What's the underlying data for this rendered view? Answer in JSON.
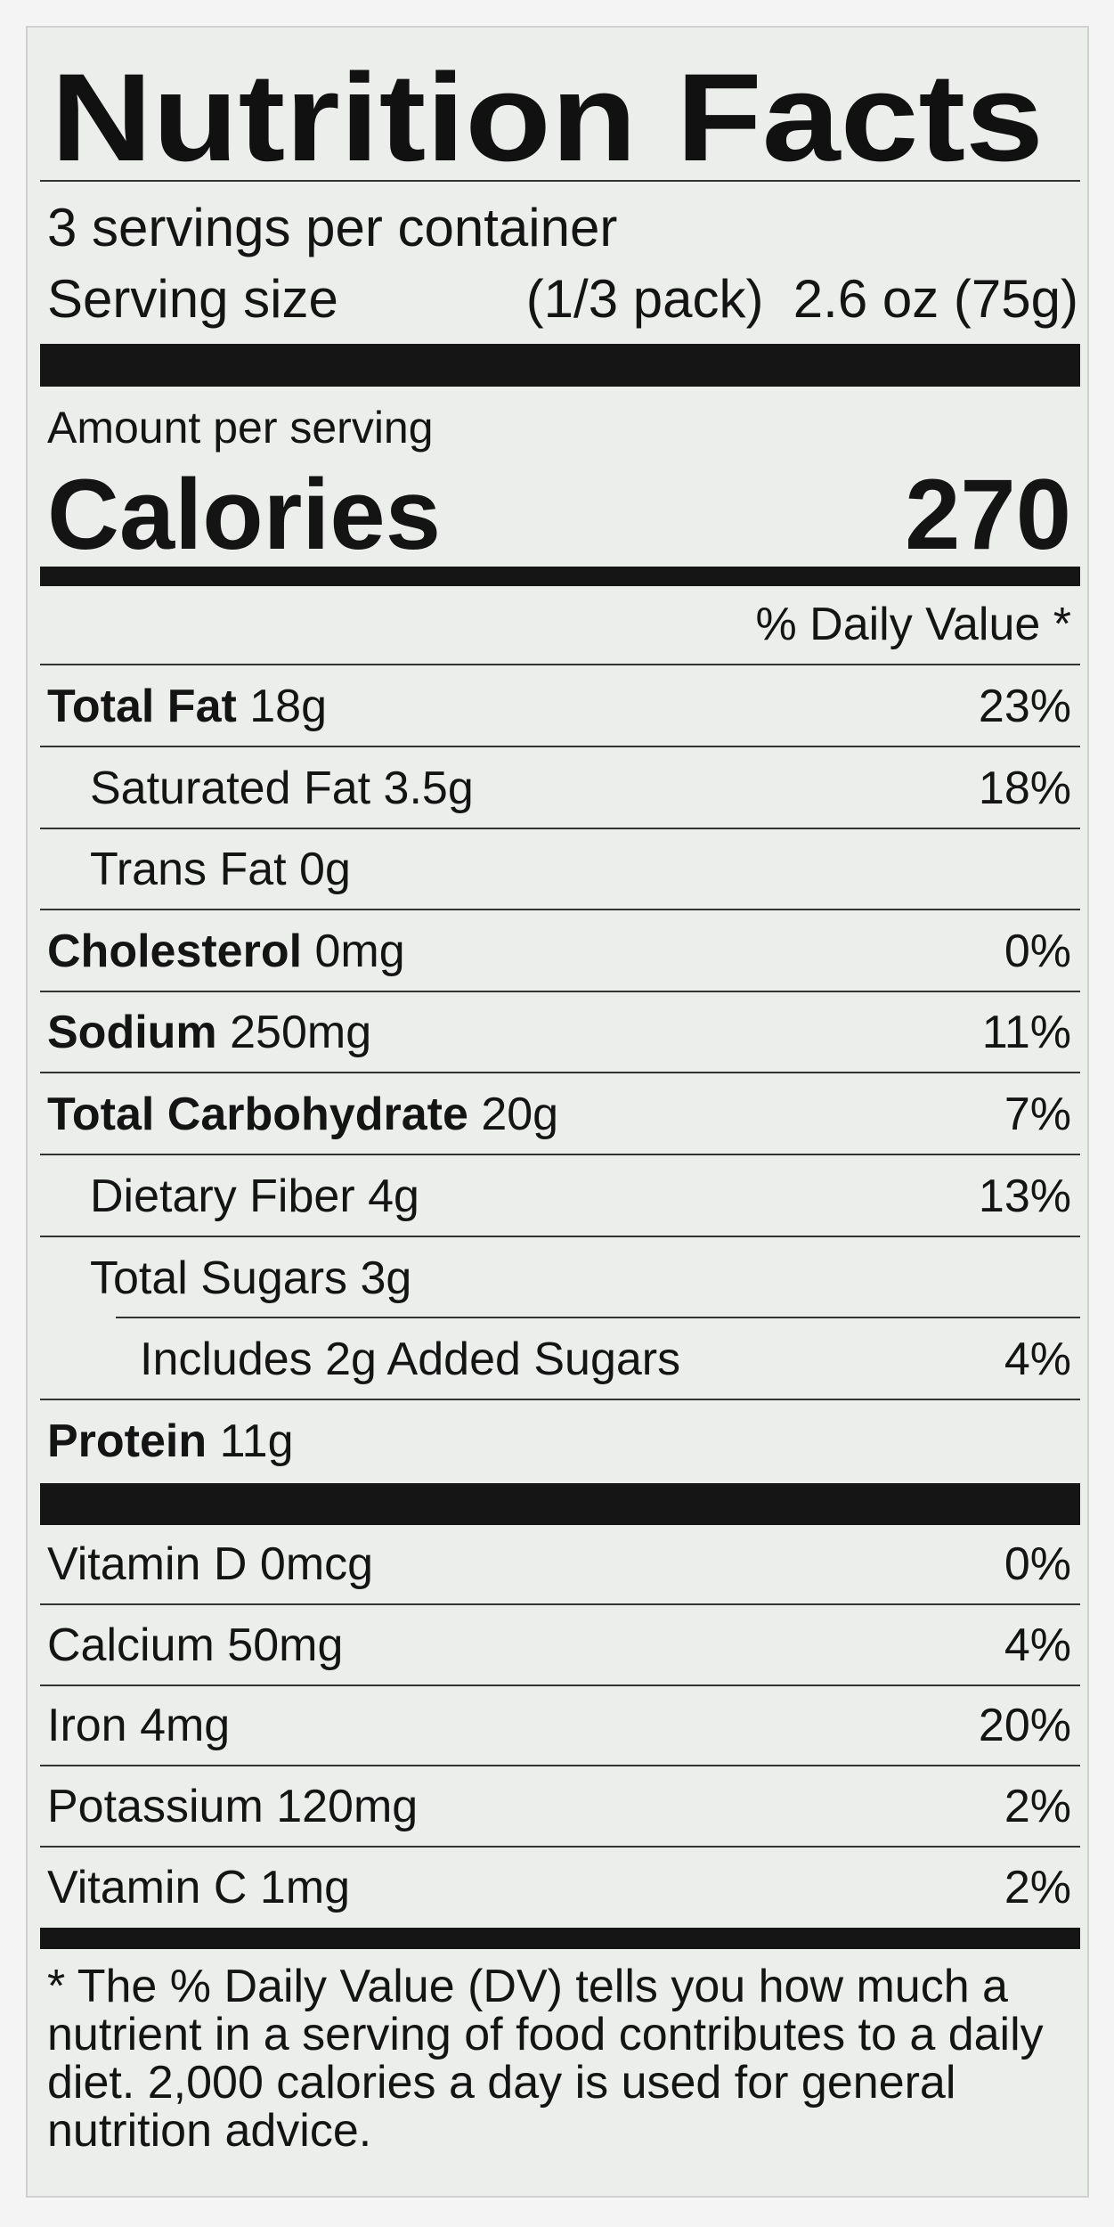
{
  "title": "Nutrition Facts",
  "servings": "3 servings per container",
  "serving_size": {
    "label": "Serving size",
    "value": "(1/3 pack)  2.6 oz (75g)"
  },
  "amount_per_serving": "Amount per serving",
  "calories": {
    "label": "Calories",
    "value": "270"
  },
  "daily_value_header": "% Daily Value *",
  "nutrients": [
    {
      "name": "Total Fat",
      "amount": "18g",
      "dv": "23%"
    },
    {
      "name": "Saturated Fat",
      "amount": "3.5g",
      "dv": "18%"
    },
    {
      "name": "Trans Fat",
      "amount": "0g"
    },
    {
      "name": "Cholesterol",
      "amount": "0mg",
      "dv": "0%"
    },
    {
      "name": "Sodium",
      "amount": "250mg",
      "dv": "11%"
    },
    {
      "name": "Total Carbohydrate",
      "amount": "20g",
      "dv": "7%"
    },
    {
      "name": "Dietary Fiber",
      "amount": "4g",
      "dv": "13%"
    },
    {
      "name": "Total Sugars",
      "amount": "3g"
    },
    {
      "name": "Includes 2g Added Sugars",
      "dv": "4%"
    },
    {
      "name": "Protein",
      "amount": "11g"
    }
  ],
  "vitamins": [
    {
      "name": "Vitamin D",
      "amount": "0mcg",
      "dv": "0%"
    },
    {
      "name": "Calcium",
      "amount": "50mg",
      "dv": "4%"
    },
    {
      "name": "Iron",
      "amount": "4mg",
      "dv": "20%"
    },
    {
      "name": "Potassium",
      "amount": "120mg",
      "dv": "2%"
    },
    {
      "name": "Vitamin C",
      "amount": "1mg",
      "dv": "2%"
    }
  ],
  "footnote": "* The % Daily Value (DV) tells you how much a nutrient in a serving of food contributes to a daily diet. 2,000 calories a day is used for general nutrition advice."
}
